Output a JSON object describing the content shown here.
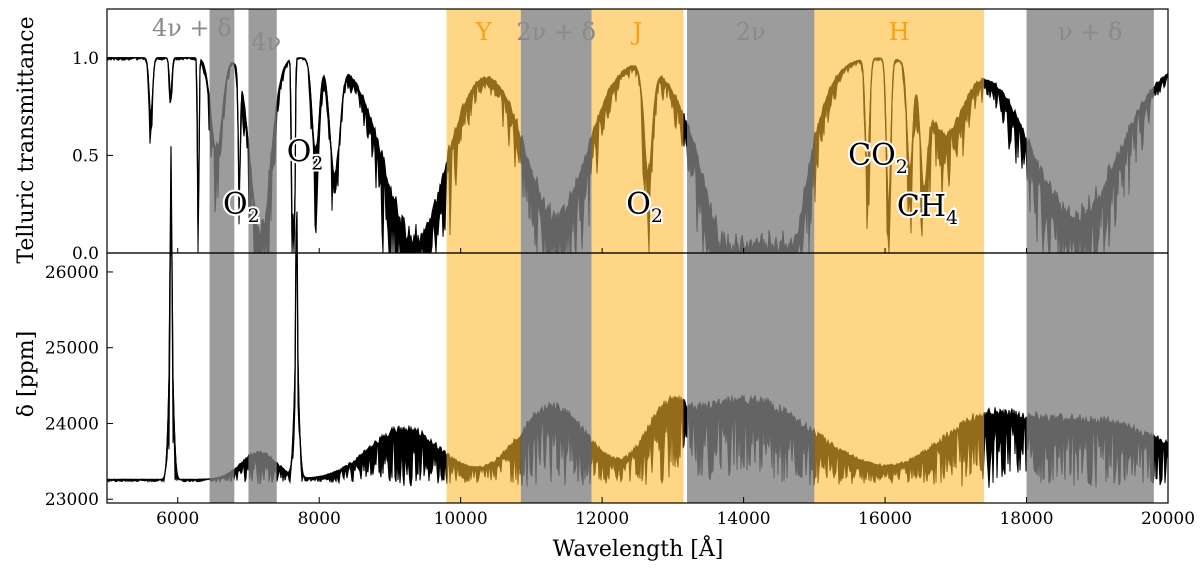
{
  "chart_data": {
    "type": "line",
    "shared_x": {
      "label": "Wavelength [Å]",
      "range": [
        5000,
        20000
      ],
      "ticks": [
        6000,
        8000,
        10000,
        12000,
        14000,
        16000,
        18000,
        20000
      ],
      "tick_labels": [
        "6000",
        "8000",
        "10000",
        "12000",
        "14000",
        "16000",
        "18000",
        "20000"
      ]
    },
    "panels": [
      {
        "id": "top",
        "ylabel": "Telluric transmittance",
        "ylim": [
          0.0,
          1.25
        ],
        "yticks": [
          0.0,
          0.5,
          1.0
        ],
        "ytick_labels": [
          "0.0",
          "0.5",
          "1.0"
        ],
        "series": [
          {
            "name": "telluric transmittance",
            "color": "#000000"
          }
        ]
      },
      {
        "id": "bottom",
        "ylabel": "δ [ppm]",
        "ylim": [
          22950,
          26250
        ],
        "yticks": [
          23000,
          24000,
          25000,
          26000
        ],
        "ytick_labels": [
          "23000",
          "24000",
          "25000",
          "26000"
        ],
        "series": [
          {
            "name": "transit depth δ",
            "color": "#000000"
          }
        ]
      }
    ],
    "shaded_bands": [
      {
        "label": "4ν + δ",
        "x_range": [
          6450,
          6800
        ],
        "kind": "water",
        "color": "#808080"
      },
      {
        "label": "4ν",
        "x_range": [
          7000,
          7400
        ],
        "kind": "water",
        "color": "#808080"
      },
      {
        "label": "Y",
        "x_range": [
          9800,
          10850
        ],
        "kind": "photometric",
        "color": "#ffb82e"
      },
      {
        "label": "2ν + δ",
        "x_range": [
          10850,
          11850
        ],
        "kind": "water",
        "color": "#808080"
      },
      {
        "label": "J",
        "x_range": [
          11850,
          13150
        ],
        "kind": "photometric",
        "color": "#ffb82e"
      },
      {
        "label": "2ν",
        "x_range": [
          13200,
          15000
        ],
        "kind": "water",
        "color": "#808080"
      },
      {
        "label": "H",
        "x_range": [
          15000,
          17400
        ],
        "kind": "photometric",
        "color": "#ffb82e"
      },
      {
        "label": "ν + δ",
        "x_range": [
          18000,
          19800
        ],
        "kind": "water",
        "color": "#808080"
      }
    ],
    "annotations": [
      {
        "base": "O",
        "sub": "2",
        "x": 6900,
        "y": 0.2
      },
      {
        "base": "O",
        "sub": "2",
        "x": 7800,
        "y": 0.47
      },
      {
        "base": "O",
        "sub": "2",
        "x": 12600,
        "y": 0.2
      },
      {
        "base": "CO",
        "sub": "2",
        "x": 15900,
        "y": 0.45
      },
      {
        "base": "CH",
        "sub": "4",
        "x": 16600,
        "y": 0.19
      }
    ],
    "colors": {
      "water_band": "#808080",
      "photometric_band": "#ffb82e",
      "line": "#000000"
    }
  }
}
